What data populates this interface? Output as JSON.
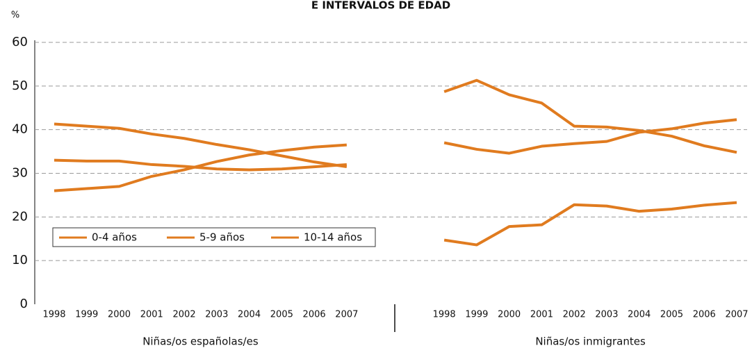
{
  "chart_data": {
    "type": "line",
    "title": "E INTERVALOS DE EDAD",
    "y_label": "%",
    "categories": [
      "1998",
      "1999",
      "2000",
      "2001",
      "2002",
      "2003",
      "2004",
      "2005",
      "2006",
      "2007",
      null,
      null,
      "1998",
      "1999",
      "2000",
      "2001",
      "2002",
      "2003",
      "2004",
      "2005",
      "2006",
      "2007"
    ],
    "group_labels": [
      "Niñas/os españolas/es",
      "Niñas/os inmigrantes"
    ],
    "ylim": [
      0,
      60
    ],
    "yticks": [
      0,
      10,
      20,
      30,
      40,
      50,
      60
    ],
    "grid": true,
    "legend": "left",
    "series": [
      {
        "name": "0-4 años",
        "color": "#e07b1f",
        "values": [
          26,
          26.5,
          27,
          29.3,
          30.8,
          32.7,
          34.2,
          35.2,
          36,
          36.5,
          null,
          null,
          14.7,
          13.6,
          17.8,
          18.2,
          22.8,
          22.5,
          21.3,
          21.8,
          22.7,
          23.3
        ]
      },
      {
        "name": "5-9 años",
        "color": "#e07b1f",
        "values": [
          33,
          32.8,
          32.8,
          32,
          31.6,
          31,
          30.8,
          31,
          31.5,
          32,
          null,
          null,
          37,
          35.5,
          34.6,
          36.2,
          36.8,
          37.3,
          39.4,
          40.2,
          41.5,
          42.3
        ]
      },
      {
        "name": "10-14 años",
        "color": "#e07b1f",
        "values": [
          41.3,
          40.8,
          40.3,
          39,
          38,
          36.6,
          35.4,
          34,
          32.6,
          31.5,
          null,
          null,
          48.7,
          51.3,
          48,
          46.1,
          40.8,
          40.6,
          39.8,
          38.5,
          36.3,
          34.8
        ]
      }
    ]
  }
}
